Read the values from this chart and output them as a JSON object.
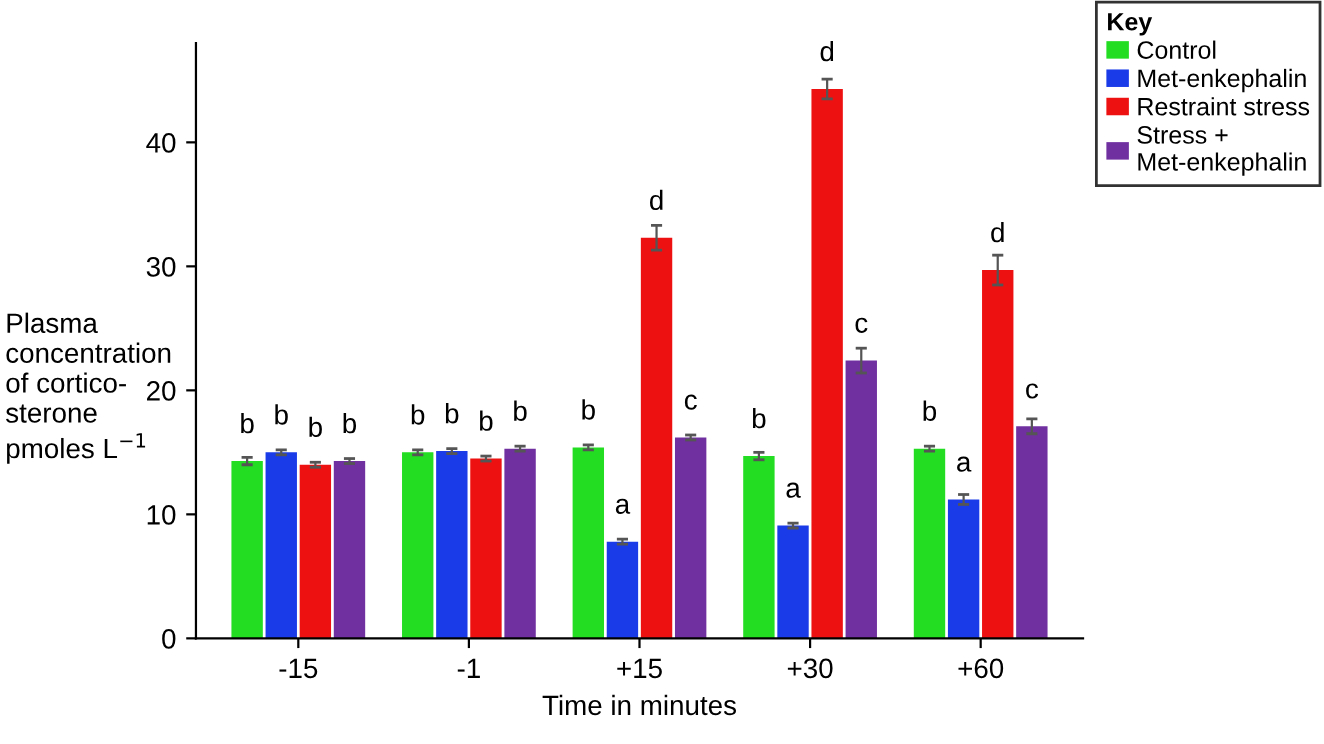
{
  "chart_data": {
    "type": "bar",
    "categories": [
      "-15",
      "-1",
      "+15",
      "+30",
      "+60"
    ],
    "xlabel": "Time in minutes",
    "ylabel": "Plasma\nconcentration\nof cortico-\nsterone\npmoles L$^{−1}$",
    "legend_title": "Key",
    "legend": "top right",
    "ylim": [
      0,
      48
    ],
    "yticks": [
      0,
      10,
      20,
      30,
      40
    ],
    "grid": false,
    "series": [
      {
        "name": "Control",
        "color": "#22dd22",
        "values": [
          14.3,
          15.0,
          15.4,
          14.7,
          15.3
        ],
        "errors": [
          0.3,
          0.2,
          0.2,
          0.3,
          0.2
        ]
      },
      {
        "name": "Met-enkephalin",
        "color": "#1a3be8",
        "values": [
          15.0,
          15.1,
          7.8,
          9.1,
          11.2
        ],
        "errors": [
          0.2,
          0.2,
          0.2,
          0.2,
          0.4
        ]
      },
      {
        "name": "Restraint stress",
        "color": "#ee1111",
        "values": [
          14.0,
          14.5,
          32.3,
          44.3,
          29.7
        ],
        "errors": [
          0.2,
          0.2,
          1.0,
          0.8,
          1.2
        ]
      },
      {
        "name": "Stress +\nMet-enkephalin",
        "color": "#7030a0",
        "values": [
          14.3,
          15.3,
          16.2,
          22.4,
          17.1
        ],
        "errors": [
          0.2,
          0.2,
          0.2,
          1.0,
          0.6
        ]
      }
    ],
    "annotations": [
      {
        "text": "b",
        "x": "-15",
        "y": 14.3
      },
      {
        "text": "b",
        "x": "-15",
        "y": 15.0
      },
      {
        "text": "b",
        "x": "-15",
        "y": 14.0
      },
      {
        "text": "b",
        "x": "-15",
        "y": 14.3
      },
      {
        "text": "b",
        "x": "-1",
        "y": 15.0
      },
      {
        "text": "b",
        "x": "-1",
        "y": 15.1
      },
      {
        "text": "b",
        "x": "-1",
        "y": 14.5
      },
      {
        "text": "b",
        "x": "-1",
        "y": 15.3
      },
      {
        "text": "b",
        "x": "+15",
        "y": 15.4
      },
      {
        "text": "a",
        "x": "+15",
        "y": 7.8
      },
      {
        "text": "d",
        "x": "+15",
        "y": 32.3
      },
      {
        "text": "c",
        "x": "+15",
        "y": 16.2
      },
      {
        "text": "b",
        "x": "+30",
        "y": 14.7
      },
      {
        "text": "a",
        "x": "+30",
        "y": 9.1
      },
      {
        "text": "d",
        "x": "+30",
        "y": 44.3
      },
      {
        "text": "c",
        "x": "+30",
        "y": 22.4
      },
      {
        "text": "b",
        "x": "+60",
        "y": 15.3
      },
      {
        "text": "a",
        "x": "+60",
        "y": 11.2
      },
      {
        "text": "d",
        "x": "+60",
        "y": 29.7
      },
      {
        "text": "c",
        "x": "+60",
        "y": 17.1
      }
    ]
  }
}
